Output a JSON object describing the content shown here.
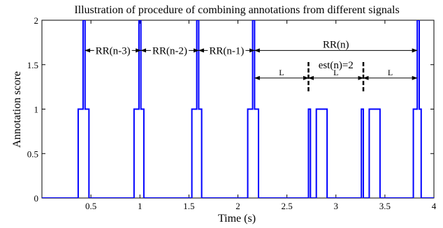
{
  "chart_data": {
    "type": "line",
    "title": "Illustration of procedure of combining annotations from different signals",
    "xlabel": "Time (s)",
    "ylabel": "Annotation score",
    "xlim": [
      0,
      4
    ],
    "ylim": [
      0,
      2
    ],
    "xticks": [
      0.5,
      1,
      1.5,
      2,
      2.5,
      3,
      3.5,
      4
    ],
    "xtick_labels": [
      "0.5",
      "1",
      "1.5",
      "2",
      "2.5",
      "3",
      "3.5",
      "4"
    ],
    "yticks": [
      0,
      0.5,
      1,
      1.5,
      2
    ],
    "ytick_labels": [
      "0",
      "0.5",
      "1",
      "1.5",
      "2"
    ],
    "grid": false,
    "line_color": "#0000ff",
    "series": [
      {
        "x": [
          0,
          0.36,
          0.37,
          0.37,
          0.39,
          0.39,
          0.42,
          0.42,
          0.44,
          0.44,
          0.46,
          0.46,
          0.48,
          0.48,
          0.49,
          0.49,
          0.94,
          0.94,
          0.97,
          0.97,
          0.99,
          0.99,
          1.01,
          1.01,
          1.04,
          1.04,
          1.06,
          1.06,
          1.53,
          1.53,
          1.56,
          1.56,
          1.58,
          1.58,
          1.6,
          1.6,
          1.63,
          1.63,
          1.65,
          1.65,
          2.1,
          2.1,
          2.13,
          2.13,
          2.15,
          2.15,
          2.17,
          2.17,
          2.19,
          2.19,
          2.21,
          2.21,
          2.72,
          2.72,
          2.74,
          2.74,
          2.77,
          2.77,
          2.8,
          2.8,
          2.82,
          2.82,
          2.91,
          2.91,
          3.26,
          3.26,
          3.28,
          3.28,
          3.3,
          3.3,
          3.34,
          3.34,
          3.36,
          3.36,
          3.45,
          3.45,
          3.79,
          3.79,
          3.81,
          3.81,
          3.83,
          3.83,
          3.85,
          3.85,
          3.87,
          3.87,
          4.0
        ],
        "y": [
          0,
          0,
          0,
          1,
          1,
          1,
          1,
          2,
          2,
          1,
          1,
          1,
          1,
          0,
          0,
          0,
          0,
          1,
          1,
          1,
          1,
          2,
          2,
          1,
          1,
          0,
          0,
          0,
          0,
          1,
          1,
          1,
          1,
          2,
          2,
          1,
          1,
          0,
          0,
          0,
          0,
          1,
          1,
          1,
          1,
          2,
          2,
          1,
          1,
          1,
          1,
          0,
          0,
          1,
          1,
          0,
          0,
          0,
          0,
          1,
          1,
          1,
          1,
          0,
          0,
          1,
          1,
          0,
          0,
          0,
          0,
          1,
          1,
          1,
          1,
          0,
          0,
          1,
          1,
          1,
          1,
          2,
          2,
          1,
          1,
          0,
          0
        ]
      }
    ],
    "annotations": {
      "rr_arrows": [
        {
          "label": "RR(n-3)",
          "x1": 0.44,
          "x2": 1.01,
          "y": 1.66
        },
        {
          "label": "RR(n-2)",
          "x1": 1.01,
          "x2": 1.6,
          "y": 1.66
        },
        {
          "label": "RR(n-1)",
          "x1": 1.6,
          "x2": 2.17,
          "y": 1.66
        },
        {
          "label": "RR(n)",
          "x1": 2.17,
          "x2": 3.83,
          "y": 1.66
        }
      ],
      "l_arrows": [
        {
          "label": "L",
          "x1": 2.17,
          "x2": 2.72,
          "y": 1.35
        },
        {
          "label": "L",
          "x1": 2.72,
          "x2": 3.28,
          "y": 1.35
        },
        {
          "label": "L",
          "x1": 3.28,
          "x2": 3.83,
          "y": 1.35
        }
      ],
      "dashed_markers": [
        {
          "x": 2.72,
          "y1": 1.2,
          "y2": 1.55
        },
        {
          "x": 3.28,
          "y1": 1.2,
          "y2": 1.55
        }
      ],
      "est_label": {
        "text": "est(n)=2",
        "x": 3.0,
        "y": 1.5
      }
    }
  }
}
